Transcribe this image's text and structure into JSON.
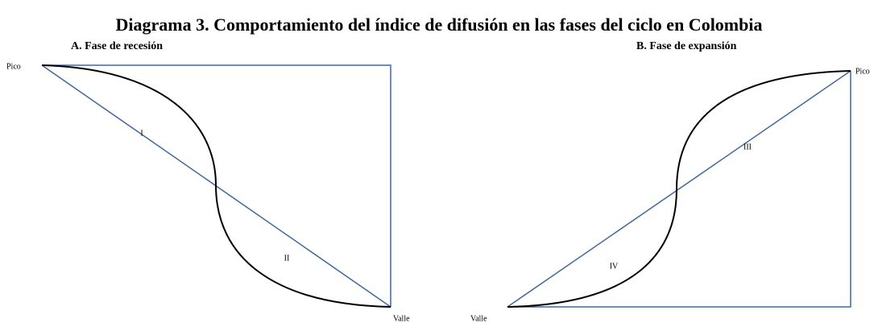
{
  "title": "Diagrama 3. Comportamiento del índice de difusión en las fases del ciclo en Colombia",
  "panels": [
    {
      "subtitle": "A. Fase de recesión",
      "peak_label": "Pico",
      "trough_label": "Valle",
      "regions": [
        "I",
        "II"
      ]
    },
    {
      "subtitle": "B. Fase de expansión",
      "peak_label": "Pico",
      "trough_label": "Valle",
      "regions": [
        "III",
        "IV"
      ]
    }
  ]
}
